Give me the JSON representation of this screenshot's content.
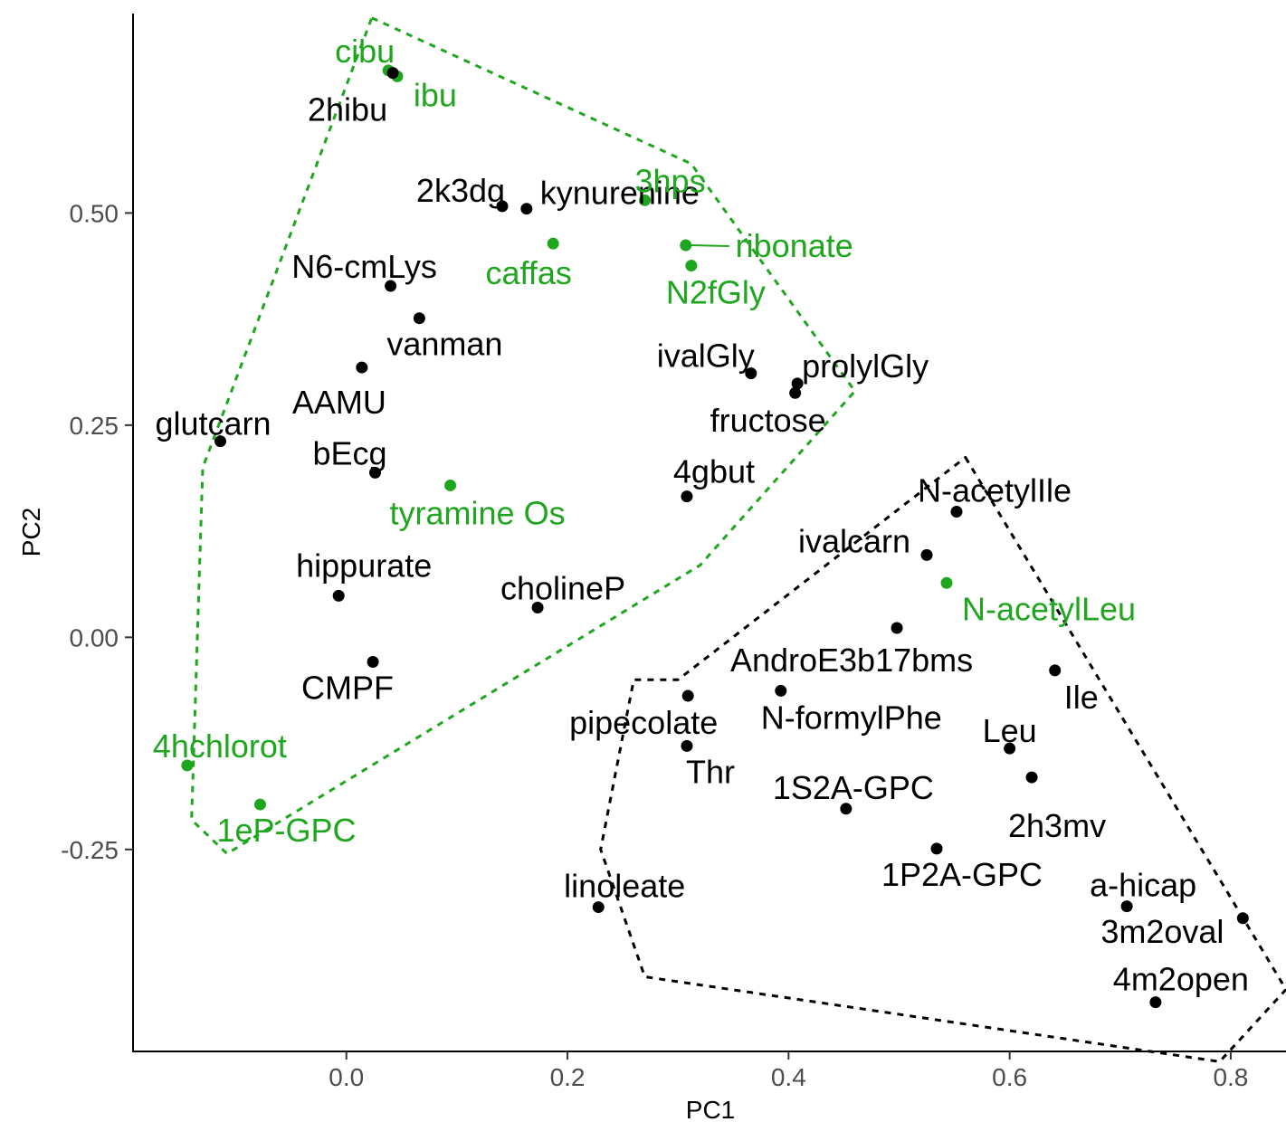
{
  "chart_data": {
    "type": "scatter",
    "title": "",
    "xlabel": "PC1",
    "ylabel": "PC2",
    "xlim": [
      -0.193,
      0.85
    ],
    "ylim": [
      -0.488,
      0.735
    ],
    "x_ticks": [
      0.0,
      0.2,
      0.4,
      0.6,
      0.8
    ],
    "x_tick_labels": [
      "0.0",
      "0.2",
      "0.4",
      "0.6",
      "0.8"
    ],
    "y_ticks": [
      -0.25,
      0.0,
      0.25,
      0.5
    ],
    "y_tick_labels": [
      "-0.25",
      "0.00",
      "0.25",
      "0.50"
    ],
    "grid": false,
    "colors": {
      "green": "#1fa61f",
      "black": "#000000"
    },
    "hulls": [
      {
        "color": "#1fa61f",
        "style": "dashed",
        "points": [
          [
            0.023,
            0.73
          ],
          [
            0.312,
            0.558
          ],
          [
            0.46,
            0.29
          ],
          [
            0.32,
            0.085
          ],
          [
            -0.108,
            -0.255
          ],
          [
            -0.14,
            -0.215
          ],
          [
            -0.13,
            0.2
          ]
        ]
      },
      {
        "color": "#000000",
        "style": "dashed",
        "points": [
          [
            0.56,
            0.212
          ],
          [
            0.85,
            -0.415
          ],
          [
            0.79,
            -0.5
          ],
          [
            0.27,
            -0.4
          ],
          [
            0.23,
            -0.25
          ],
          [
            0.26,
            -0.05
          ],
          [
            0.3,
            -0.05
          ]
        ]
      }
    ],
    "points": [
      {
        "label": "cibu",
        "x": 0.038,
        "y": 0.668,
        "color": "#1fa61f"
      },
      {
        "label": "ibu",
        "x": 0.046,
        "y": 0.661,
        "color": "#1fa61f"
      },
      {
        "label": "2hibu",
        "x": 0.042,
        "y": 0.665,
        "color": "#000000"
      },
      {
        "label": "2k3dg",
        "x": 0.141,
        "y": 0.508,
        "color": "#000000"
      },
      {
        "label": "kynurenine",
        "x": 0.163,
        "y": 0.505,
        "color": "#000000"
      },
      {
        "label": "3hps",
        "x": 0.27,
        "y": 0.515,
        "color": "#1fa61f"
      },
      {
        "label": "caffas",
        "x": 0.187,
        "y": 0.464,
        "color": "#1fa61f"
      },
      {
        "label": "ribonate",
        "x": 0.307,
        "y": 0.462,
        "color": "#1fa61f"
      },
      {
        "label": "N2fGly",
        "x": 0.312,
        "y": 0.438,
        "color": "#1fa61f"
      },
      {
        "label": "N6-cmLys",
        "x": 0.04,
        "y": 0.414,
        "color": "#000000"
      },
      {
        "label": "vanman",
        "x": 0.066,
        "y": 0.376,
        "color": "#000000"
      },
      {
        "label": "ivalGly",
        "x": 0.366,
        "y": 0.311,
        "color": "#000000"
      },
      {
        "label": "AAMU",
        "x": 0.014,
        "y": 0.318,
        "color": "#000000"
      },
      {
        "label": "prolylGly",
        "x": 0.408,
        "y": 0.299,
        "color": "#000000"
      },
      {
        "label": "fructose",
        "x": 0.406,
        "y": 0.288,
        "color": "#000000"
      },
      {
        "label": "glutcarn",
        "x": -0.114,
        "y": 0.231,
        "color": "#000000"
      },
      {
        "label": "bEcg",
        "x": 0.026,
        "y": 0.194,
        "color": "#000000"
      },
      {
        "label": "tyramine Os",
        "x": 0.094,
        "y": 0.179,
        "color": "#1fa61f"
      },
      {
        "label": "4gbut",
        "x": 0.308,
        "y": 0.166,
        "color": "#000000"
      },
      {
        "label": "N-acetylIle",
        "x": 0.552,
        "y": 0.148,
        "color": "#000000"
      },
      {
        "label": "ivalcarn",
        "x": 0.525,
        "y": 0.097,
        "color": "#000000"
      },
      {
        "label": "N-acetylLeu",
        "x": 0.543,
        "y": 0.064,
        "color": "#1fa61f"
      },
      {
        "label": "hippurate",
        "x": -0.007,
        "y": 0.049,
        "color": "#000000"
      },
      {
        "label": "cholineP",
        "x": 0.173,
        "y": 0.035,
        "color": "#000000"
      },
      {
        "label": "AndroE3b17bms",
        "x": 0.498,
        "y": 0.011,
        "color": "#000000"
      },
      {
        "label": "CMPF",
        "x": 0.024,
        "y": -0.029,
        "color": "#000000"
      },
      {
        "label": "Ile",
        "x": 0.641,
        "y": -0.039,
        "color": "#000000"
      },
      {
        "label": "N-formylPhe",
        "x": 0.393,
        "y": -0.063,
        "color": "#000000"
      },
      {
        "label": "pipecolate",
        "x": 0.309,
        "y": -0.069,
        "color": "#000000"
      },
      {
        "label": "Thr",
        "x": 0.308,
        "y": -0.128,
        "color": "#000000"
      },
      {
        "label": "Leu",
        "x": 0.6,
        "y": -0.131,
        "color": "#000000"
      },
      {
        "label": "4hchlorot",
        "x": -0.144,
        "y": -0.151,
        "color": "#1fa61f"
      },
      {
        "label": "2h3mv",
        "x": 0.62,
        "y": -0.165,
        "color": "#000000"
      },
      {
        "label": "1eP-GPC",
        "x": -0.078,
        "y": -0.197,
        "color": "#1fa61f"
      },
      {
        "label": "1S2A-GPC",
        "x": 0.452,
        "y": -0.202,
        "color": "#000000"
      },
      {
        "label": "1P2A-GPC",
        "x": 0.534,
        "y": -0.249,
        "color": "#000000"
      },
      {
        "label": "linoleate",
        "x": 0.228,
        "y": -0.318,
        "color": "#000000"
      },
      {
        "label": "a-hicap",
        "x": 0.706,
        "y": -0.317,
        "color": "#000000"
      },
      {
        "label": "3m2oval",
        "x": 0.811,
        "y": -0.331,
        "color": "#000000"
      },
      {
        "label": "4m2open",
        "x": 0.732,
        "y": -0.43,
        "color": "#000000"
      }
    ]
  }
}
